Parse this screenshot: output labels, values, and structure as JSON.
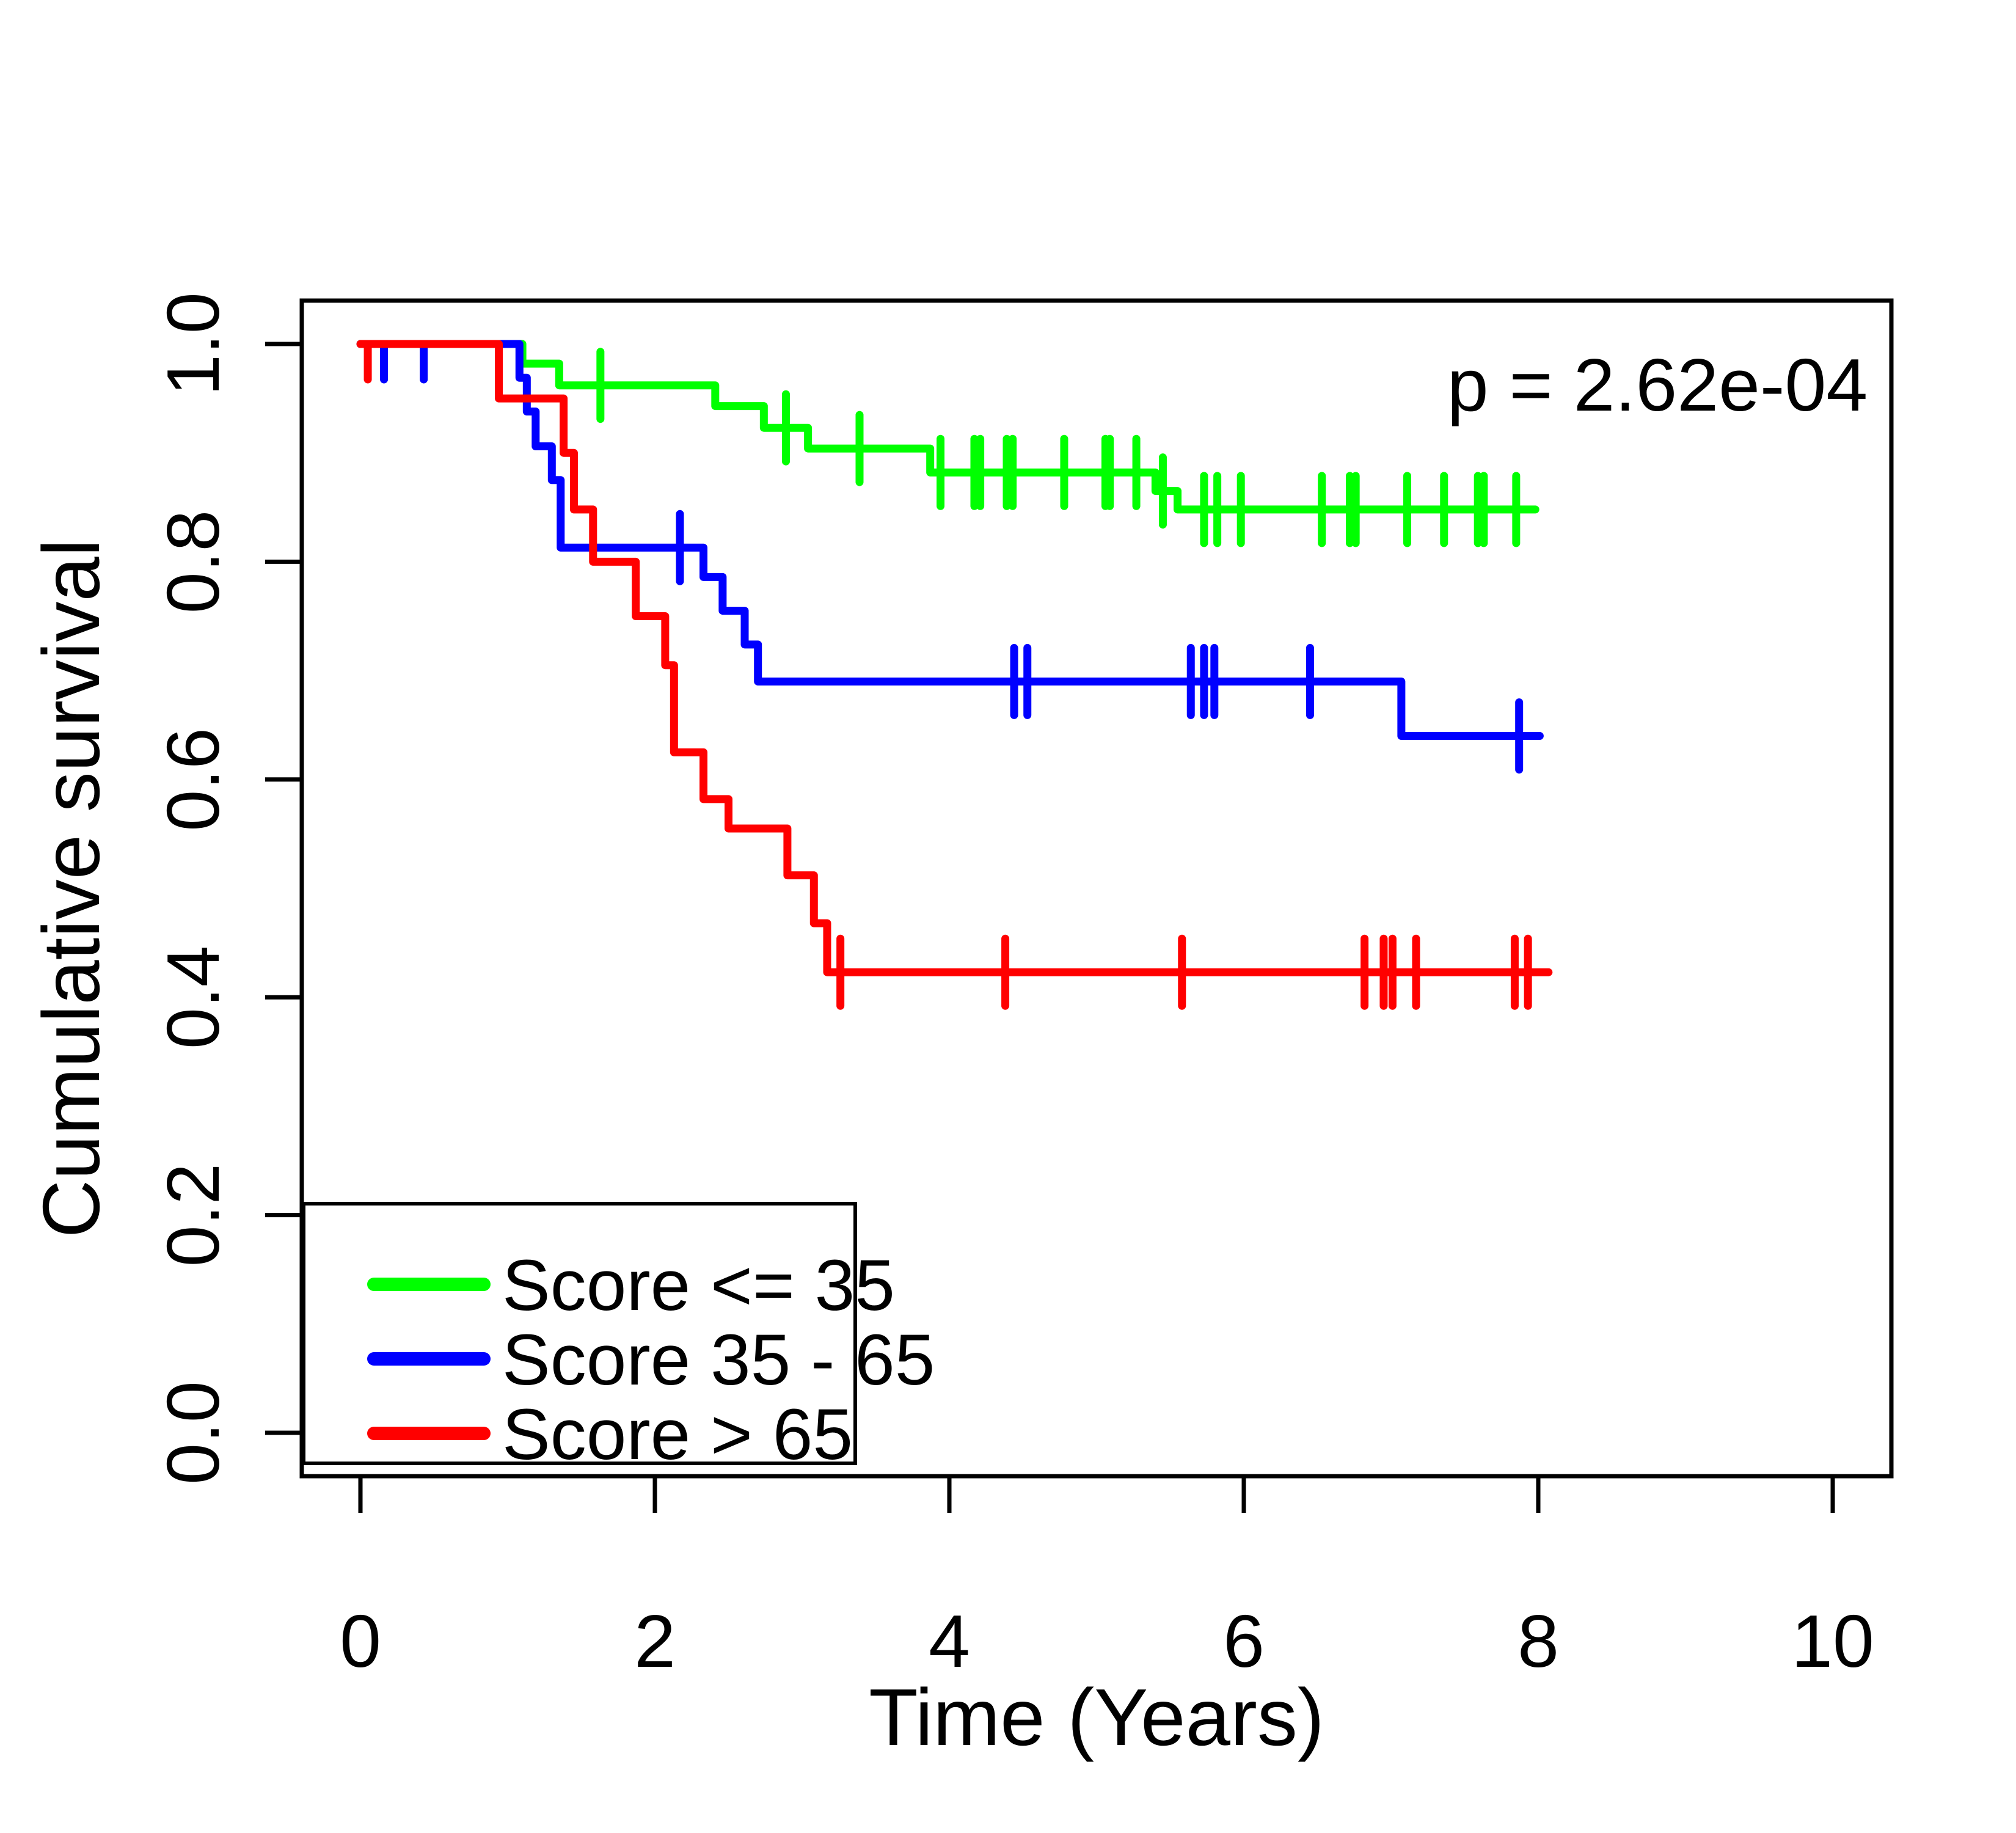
{
  "figure": {
    "background": "#ffffff",
    "annotation": "p = 2.62e-04"
  },
  "chart_data": {
    "type": "line",
    "subtype": "kaplan-meier-step-function",
    "title": "",
    "xlabel": "Time (Years)",
    "ylabel": "Cumulative survival",
    "annotation": "p = 2.62e-04",
    "xlim": [
      0,
      10.4
    ],
    "ylim": [
      -0.04,
      1.04
    ],
    "grid": false,
    "x_tick_values": [
      0,
      2,
      4,
      6,
      8,
      10
    ],
    "x_tick_labels": [
      "0",
      "2",
      "4",
      "6",
      "8",
      "10"
    ],
    "y_tick_values": [
      0.0,
      0.2,
      0.4,
      0.6,
      0.8,
      1.0
    ],
    "y_tick_labels": [
      "0.0",
      "0.2",
      "0.4",
      "0.6",
      "0.8",
      "1.0"
    ],
    "legend_position": "bottom-left",
    "axis_color": "#000000",
    "series": [
      {
        "name": "Score <= 35",
        "slug": "score-le-35",
        "color": "#00FF00",
        "steps": [
          [
            0,
            1.0
          ],
          [
            1.1,
            0.982
          ],
          [
            1.35,
            0.962
          ],
          [
            2.41,
            0.943
          ],
          [
            2.74,
            0.923
          ],
          [
            3.04,
            0.904
          ],
          [
            3.87,
            0.882
          ],
          [
            5.4,
            0.865
          ],
          [
            5.55,
            0.848
          ]
        ],
        "end_time": 7.98,
        "censors": [
          [
            1.63,
            0.962
          ],
          [
            2.89,
            0.923
          ],
          [
            3.39,
            0.904
          ],
          [
            3.94,
            0.882
          ],
          [
            4.17,
            0.882
          ],
          [
            4.21,
            0.882
          ],
          [
            4.39,
            0.882
          ],
          [
            4.43,
            0.882
          ],
          [
            4.78,
            0.882
          ],
          [
            5.06,
            0.882
          ],
          [
            5.09,
            0.882
          ],
          [
            5.27,
            0.882
          ],
          [
            5.45,
            0.865
          ],
          [
            5.73,
            0.848
          ],
          [
            5.82,
            0.848
          ],
          [
            5.98,
            0.848
          ],
          [
            6.53,
            0.848
          ],
          [
            6.72,
            0.848
          ],
          [
            6.76,
            0.848
          ],
          [
            7.11,
            0.848
          ],
          [
            7.36,
            0.848
          ],
          [
            7.59,
            0.848
          ],
          [
            7.63,
            0.848
          ],
          [
            7.85,
            0.848
          ]
        ]
      },
      {
        "name": "Score 35 - 65",
        "slug": "score-35-65",
        "color": "#0000FF",
        "steps": [
          [
            0,
            1.0
          ],
          [
            1.08,
            0.969
          ],
          [
            1.13,
            0.938
          ],
          [
            1.19,
            0.906
          ],
          [
            1.3,
            0.875
          ],
          [
            1.36,
            0.813
          ],
          [
            2.33,
            0.786
          ],
          [
            2.46,
            0.755
          ],
          [
            2.61,
            0.724
          ],
          [
            2.7,
            0.69
          ],
          [
            7.07,
            0.64
          ]
        ],
        "end_time": 8.01,
        "censors": [
          [
            0.16,
            1.0
          ],
          [
            0.43,
            1.0
          ],
          [
            2.17,
            0.813
          ],
          [
            4.44,
            0.69
          ],
          [
            4.53,
            0.69
          ],
          [
            5.64,
            0.69
          ],
          [
            5.73,
            0.69
          ],
          [
            5.8,
            0.69
          ],
          [
            6.45,
            0.69
          ],
          [
            7.87,
            0.64
          ]
        ]
      },
      {
        "name": "Score > 65",
        "slug": "score-gt-65",
        "color": "#FF0000",
        "steps": [
          [
            0,
            1.0
          ],
          [
            0.94,
            0.95
          ],
          [
            1.38,
            0.9
          ],
          [
            1.45,
            0.848
          ],
          [
            1.58,
            0.8
          ],
          [
            1.87,
            0.75
          ],
          [
            2.07,
            0.705
          ],
          [
            2.13,
            0.625
          ],
          [
            2.33,
            0.582
          ],
          [
            2.5,
            0.555
          ],
          [
            2.9,
            0.512
          ],
          [
            3.08,
            0.468
          ],
          [
            3.17,
            0.423
          ]
        ],
        "end_time": 8.07,
        "censors": [
          [
            0.05,
            1.0
          ],
          [
            3.26,
            0.423
          ],
          [
            4.38,
            0.423
          ],
          [
            5.58,
            0.423
          ],
          [
            6.82,
            0.423
          ],
          [
            6.95,
            0.423
          ],
          [
            7.01,
            0.423
          ],
          [
            7.17,
            0.423
          ],
          [
            7.84,
            0.423
          ],
          [
            7.93,
            0.423
          ]
        ]
      }
    ]
  }
}
